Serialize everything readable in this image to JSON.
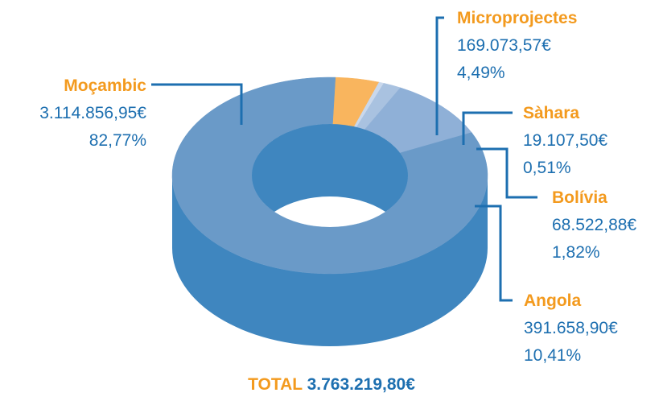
{
  "chart_data": {
    "type": "pie",
    "categories": [
      "Microprojectes",
      "Sàhara",
      "Bolívia",
      "Angola",
      "Moçambic"
    ],
    "values": [
      169073.57,
      19107.5,
      68522.88,
      391658.9,
      3114856.95
    ],
    "value_labels": [
      "169.073,57€",
      "19.107,50€",
      "68.522,88€",
      "391.658,90€",
      "3.114.856,95€"
    ],
    "percentages": [
      4.49,
      0.51,
      1.82,
      10.41,
      82.77
    ],
    "percentage_labels": [
      "4,49%",
      "0,51%",
      "1,82%",
      "10,41%",
      "82,77%"
    ],
    "colors": [
      "#f9b55e",
      "#c9d8ec",
      "#a9c2e0",
      "#8fb0d7",
      "#6a9ac8"
    ],
    "side_color": "#3f86bf",
    "total_title": "TOTAL",
    "total_value": 3763219.8,
    "total_value_label": "3.763.219,80€"
  }
}
